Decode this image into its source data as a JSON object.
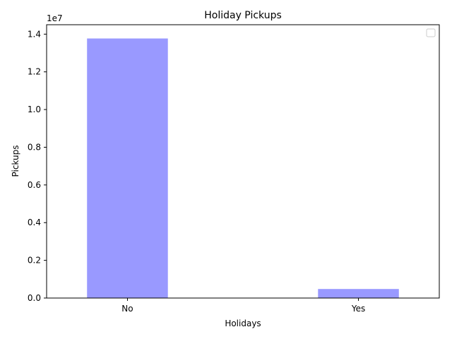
{
  "chart_data": {
    "type": "bar",
    "title": "Holiday Pickups",
    "xlabel": "Holidays",
    "ylabel": "Pickups",
    "categories": [
      "No",
      "Yes"
    ],
    "values": [
      13770000,
      480000
    ],
    "ylim": [
      0,
      14500000
    ],
    "y_ticks": [
      0,
      2000000,
      4000000,
      6000000,
      8000000,
      10000000,
      12000000,
      14000000
    ],
    "y_tick_labels": [
      "0.0",
      "0.2",
      "0.4",
      "0.6",
      "0.8",
      "1.0",
      "1.2",
      "1.4"
    ],
    "y_offset_label": "1e7",
    "bar_color": "#9999ff",
    "legend": "top-right",
    "grid": false
  }
}
